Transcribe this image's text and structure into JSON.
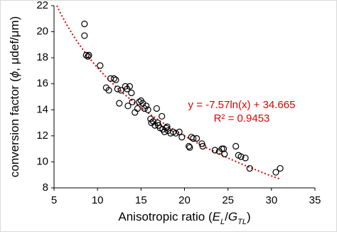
{
  "chart_data": {
    "type": "scatter",
    "xlabel": [
      "Anisotropic ratio (",
      "E",
      "L",
      "/",
      "G",
      "TL",
      ")"
    ],
    "ylabel": [
      "conversion factor (",
      "ϕ",
      ", μdef/μm)"
    ],
    "annotations": [
      "y = -7.57ln(x) + 34.665",
      "R² = 0.9453"
    ],
    "color": "#000000",
    "trendline": {
      "a": -7.57,
      "b": 34.665,
      "xrange": [
        5.33,
        31
      ],
      "color": "#e00000"
    },
    "x": [
      8.5,
      8.5,
      8.7,
      8.9,
      9.0,
      10.3,
      11.0,
      11.3,
      11.5,
      11.9,
      12.1,
      12.3,
      12.5,
      12.7,
      13.2,
      13.4,
      13.5,
      13.7,
      13.9,
      14.0,
      14.3,
      14.6,
      14.8,
      15.0,
      15.2,
      15.4,
      15.6,
      15.8,
      16.1,
      16.2,
      16.4,
      16.6,
      16.8,
      16.9,
      17.0,
      17.2,
      17.4,
      17.5,
      17.7,
      17.9,
      18.0,
      18.1,
      18.4,
      18.7,
      19.0,
      19.4,
      19.7,
      20.5,
      20.6,
      20.8,
      21.0,
      21.4,
      22.0,
      22.1,
      23.5,
      24.0,
      24.3,
      24.5,
      24.6,
      25.9,
      26.2,
      26.5,
      27.0,
      27.5,
      30.5,
      31.0
    ],
    "values": [
      20.6,
      19.7,
      18.2,
      18.1,
      18.2,
      17.4,
      15.7,
      15.5,
      16.4,
      16.4,
      16.3,
      15.6,
      14.5,
      15.5,
      15.8,
      15.6,
      14.3,
      15.8,
      15.3,
      14.6,
      13.8,
      14.1,
      14.6,
      14.7,
      14.5,
      14.1,
      14.3,
      14.0,
      13.3,
      13.0,
      13.1,
      12.8,
      14.1,
      13.0,
      12.8,
      12.6,
      13.5,
      12.5,
      12.3,
      12.6,
      12.7,
      12.4,
      12.2,
      12.3,
      12.2,
      12.3,
      11.9,
      11.2,
      11.1,
      11.9,
      11.8,
      11.8,
      11.4,
      11.2,
      10.9,
      10.8,
      11.0,
      11.0,
      10.6,
      11.2,
      10.5,
      10.4,
      10.3,
      9.5,
      9.2,
      9.5
    ],
    "xlim": [
      5,
      35
    ],
    "xticks": [
      5,
      10,
      15,
      20,
      25,
      30,
      35
    ],
    "ylim": [
      8,
      22
    ],
    "yticks": [
      8,
      10,
      12,
      14,
      16,
      18,
      20,
      22
    ]
  }
}
